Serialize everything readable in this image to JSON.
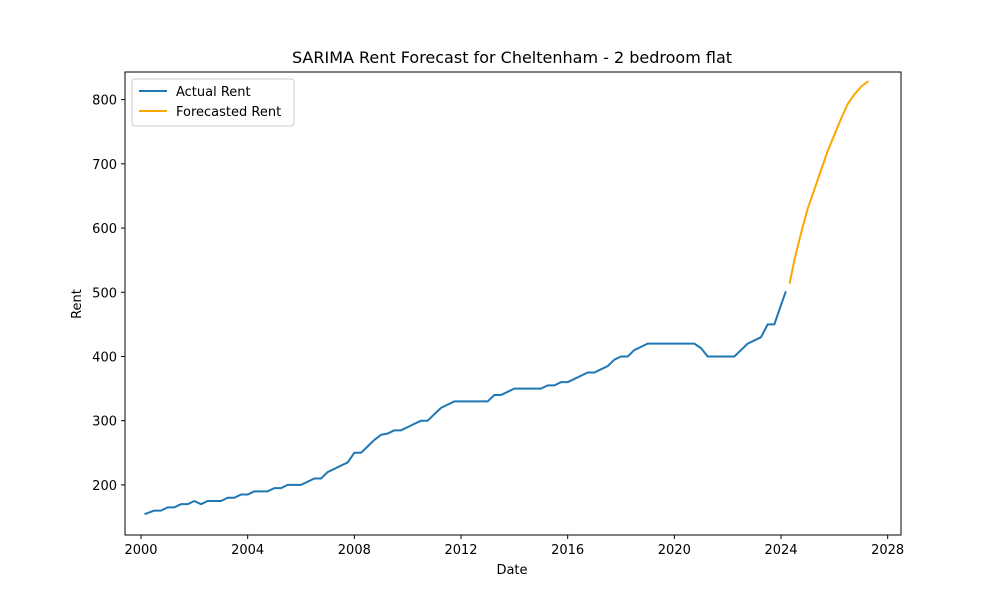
{
  "chart_data": {
    "type": "line",
    "title": "SARIMA Rent Forecast for Cheltenham - 2 bedroom flat",
    "xlabel": "Date",
    "ylabel": "Rent",
    "xlim": [
      1999.4,
      2028.5
    ],
    "ylim": [
      122,
      843
    ],
    "x_ticks": [
      2000,
      2004,
      2008,
      2012,
      2016,
      2020,
      2024,
      2028
    ],
    "x_tick_labels": [
      "2000",
      "2004",
      "2008",
      "2012",
      "2016",
      "2020",
      "2024",
      "2028"
    ],
    "y_ticks": [
      200,
      300,
      400,
      500,
      600,
      700,
      800
    ],
    "y_tick_labels": [
      "200",
      "300",
      "400",
      "500",
      "600",
      "700",
      "800"
    ],
    "grid": false,
    "legend_position": "upper-left",
    "series": [
      {
        "name": "Actual Rent",
        "color": "#1f77b4",
        "x": [
          2000.17,
          2000.5,
          2000.75,
          2001.0,
          2001.25,
          2001.5,
          2001.75,
          2002.0,
          2002.25,
          2002.5,
          2002.75,
          2003.0,
          2003.25,
          2003.5,
          2003.75,
          2004.0,
          2004.25,
          2004.5,
          2004.75,
          2005.0,
          2005.25,
          2005.5,
          2005.75,
          2006.0,
          2006.25,
          2006.5,
          2006.75,
          2007.0,
          2007.25,
          2007.5,
          2007.75,
          2008.0,
          2008.25,
          2008.5,
          2008.75,
          2009.0,
          2009.25,
          2009.5,
          2009.75,
          2010.0,
          2010.25,
          2010.5,
          2010.75,
          2011.0,
          2011.25,
          2011.5,
          2011.75,
          2012.0,
          2012.25,
          2012.5,
          2012.75,
          2013.0,
          2013.25,
          2013.5,
          2013.75,
          2014.0,
          2014.25,
          2014.5,
          2014.75,
          2015.0,
          2015.25,
          2015.5,
          2015.75,
          2016.0,
          2016.25,
          2016.5,
          2016.75,
          2017.0,
          2017.25,
          2017.5,
          2017.75,
          2018.0,
          2018.25,
          2018.5,
          2018.75,
          2019.0,
          2019.25,
          2019.5,
          2019.75,
          2020.0,
          2020.25,
          2020.5,
          2020.75,
          2021.0,
          2021.25,
          2021.5,
          2021.75,
          2022.0,
          2022.25,
          2022.5,
          2022.75,
          2023.0,
          2023.25,
          2023.5,
          2023.75,
          2024.0,
          2024.17
        ],
        "values": [
          155,
          160,
          160,
          165,
          165,
          170,
          170,
          175,
          170,
          175,
          175,
          175,
          180,
          180,
          185,
          185,
          190,
          190,
          190,
          195,
          195,
          200,
          200,
          200,
          205,
          210,
          210,
          220,
          225,
          230,
          235,
          250,
          250,
          260,
          270,
          278,
          280,
          285,
          285,
          290,
          295,
          300,
          300,
          310,
          320,
          325,
          330,
          330,
          330,
          330,
          330,
          330,
          340,
          340,
          345,
          350,
          350,
          350,
          350,
          350,
          355,
          355,
          360,
          360,
          365,
          370,
          375,
          375,
          380,
          385,
          395,
          400,
          400,
          410,
          415,
          420,
          420,
          420,
          420,
          420,
          420,
          420,
          420,
          413,
          400,
          400,
          400,
          400,
          400,
          410,
          420,
          425,
          430,
          450,
          450,
          480,
          500
        ]
      },
      {
        "name": "Forecasted Rent",
        "color": "#ffa500",
        "x": [
          2024.33,
          2024.5,
          2024.75,
          2025.0,
          2025.25,
          2025.5,
          2025.75,
          2026.0,
          2026.25,
          2026.5,
          2026.75,
          2027.0,
          2027.25
        ],
        "values": [
          515,
          550,
          592,
          630,
          660,
          690,
          720,
          745,
          770,
          793,
          808,
          820,
          828
        ]
      }
    ]
  }
}
